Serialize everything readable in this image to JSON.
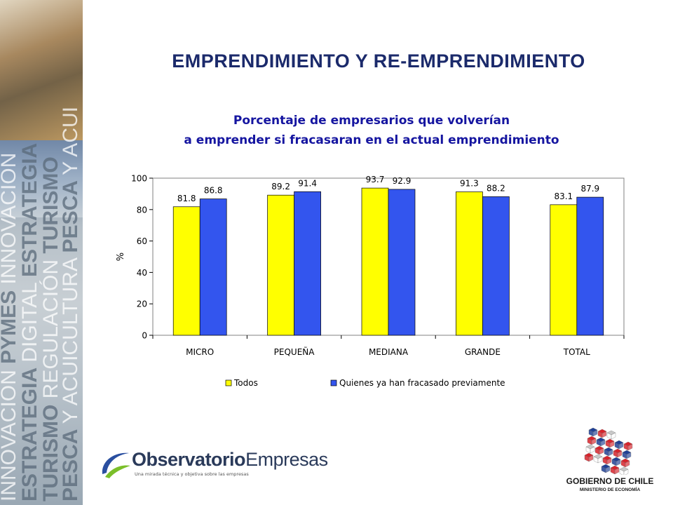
{
  "slide": {
    "title": "EMPRENDIMIENTO Y RE-EMPRENDIMIENTO",
    "subtitle_line1": "Porcentaje de empresarios que volverían",
    "subtitle_line2": "a emprender si fracasaran en el actual emprendimiento"
  },
  "sidebar": {
    "words": [
      {
        "text": "INNOVACIÓN PYMES INNOVACIÓN",
        "bold": "PYMES"
      },
      {
        "text": "ESTRATEGIA DIGITAL ESTRATEGIA",
        "bold": "ESTRATEGIA"
      },
      {
        "text": "TURISMO REGULACIÓN TURISMO",
        "bold": "TURISMO"
      },
      {
        "text": "PESCA Y ACUICULTURA PESCA Y ACUI",
        "bold": "PESCA"
      }
    ]
  },
  "chart_data": {
    "type": "bar",
    "title": "Porcentaje de empresarios que volverían a emprender si fracasaran en el actual emprendimiento",
    "categories": [
      "MICRO",
      "PEQUEÑA",
      "MEDIANA",
      "GRANDE",
      "TOTAL"
    ],
    "series": [
      {
        "name": "Todos",
        "values": [
          81.8,
          89.2,
          93.7,
          91.3,
          83.1
        ],
        "color": "#ffff00"
      },
      {
        "name": "Quienes ya han fracasado previamente",
        "values": [
          86.8,
          91.4,
          92.9,
          88.2,
          87.9
        ],
        "color": "#3355ee"
      }
    ],
    "ylabel": "%",
    "xlabel": "",
    "ylim": [
      0,
      100
    ],
    "yticks": [
      0,
      20,
      40,
      60,
      80,
      100
    ],
    "grid": false,
    "legend_position": "bottom",
    "data_labels": true
  },
  "logos": {
    "observatorio_name_bold": "Observatorio",
    "observatorio_name_light": "Empresas",
    "observatorio_tagline": "Una mirada técnica y objetiva sobre las empresas",
    "gobierno_name": "GOBIERNO DE CHILE",
    "gobierno_ministry": "MINISTERIO DE ECONOMÍA"
  },
  "colors": {
    "title": "#1b2a6b",
    "subtitle": "#1515a0",
    "bar_todos": "#ffff00",
    "bar_fracasado": "#3355ee"
  }
}
